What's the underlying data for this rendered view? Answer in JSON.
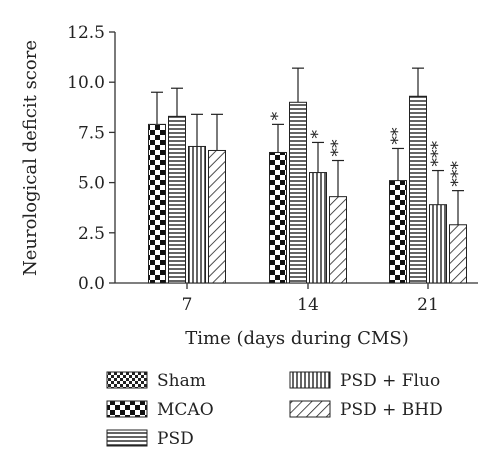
{
  "chart_data": {
    "type": "bar",
    "categories": [
      "7",
      "14",
      "21"
    ],
    "xlabel": "Time (days during CMS)",
    "ylabel": "Neurological deficit score",
    "ylim": [
      0,
      12.5
    ],
    "yticks": [
      "0.0",
      "2.5",
      "5.0",
      "7.5",
      "10.0",
      "12.5"
    ],
    "series": [
      {
        "name": "Sham",
        "pattern": "checker-fine",
        "values": [
          null,
          null,
          null
        ],
        "errors": [
          null,
          null,
          null
        ],
        "significance": [
          "",
          "",
          ""
        ]
      },
      {
        "name": "MCAO",
        "pattern": "checker-coarse",
        "values": [
          7.9,
          6.5,
          5.1
        ],
        "errors": [
          1.6,
          1.4,
          1.6
        ],
        "significance": [
          "",
          "*",
          "**"
        ]
      },
      {
        "name": "PSD",
        "pattern": "horizontal-lines",
        "values": [
          8.3,
          9.0,
          9.3
        ],
        "errors": [
          1.4,
          1.7,
          1.4
        ],
        "significance": [
          "",
          "",
          ""
        ]
      },
      {
        "name": "PSD + Fluo",
        "pattern": "vertical-lines",
        "values": [
          6.8,
          5.5,
          3.9
        ],
        "errors": [
          1.6,
          1.5,
          1.7
        ],
        "significance": [
          "",
          "*",
          "***"
        ]
      },
      {
        "name": "PSD + BHD",
        "pattern": "diagonal-lines",
        "values": [
          6.6,
          4.3,
          2.9
        ],
        "errors": [
          1.8,
          1.8,
          1.7
        ],
        "significance": [
          "",
          "**",
          "***"
        ]
      }
    ],
    "legend": {
      "placement": "bottom",
      "columns": 2
    },
    "grid": false
  }
}
